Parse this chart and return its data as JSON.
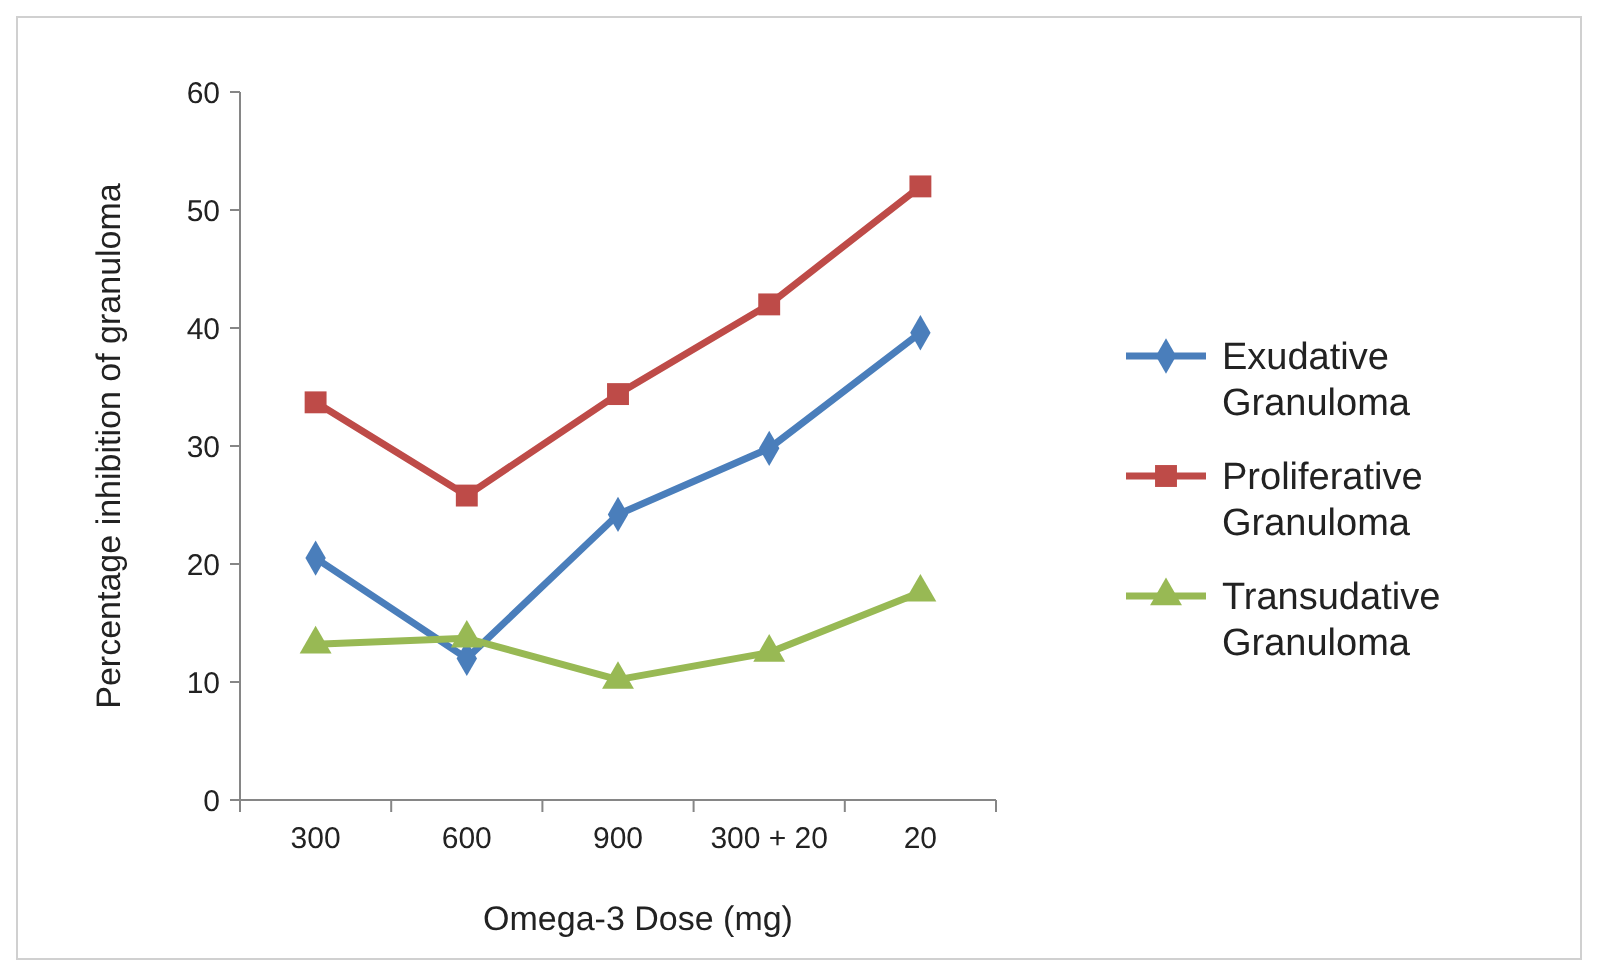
{
  "chart_data": {
    "type": "line",
    "xlabel": "Omega-3 Dose (mg)",
    "ylabel": "Percentage inhibition of granuloma",
    "categories": [
      "300",
      "600",
      "900",
      "300 + 20",
      "20"
    ],
    "ylim": [
      0,
      60
    ],
    "yticks": [
      0,
      10,
      20,
      30,
      40,
      50,
      60
    ],
    "grid": false,
    "legend": "right",
    "line_style": "solid",
    "series": [
      {
        "name": "Exudative Granuloma",
        "color": "#4a7ebb",
        "marker": "diamond",
        "values": [
          20.5,
          12.0,
          24.2,
          29.8,
          39.6
        ]
      },
      {
        "name": "Proliferative Granuloma",
        "color": "#be4b48",
        "marker": "square",
        "values": [
          33.7,
          25.8,
          34.4,
          42.0,
          52.0
        ]
      },
      {
        "name": "Transudative Granuloma",
        "color": "#98b954",
        "marker": "triangle",
        "values": [
          13.2,
          13.7,
          10.2,
          12.5,
          17.6
        ]
      }
    ]
  }
}
